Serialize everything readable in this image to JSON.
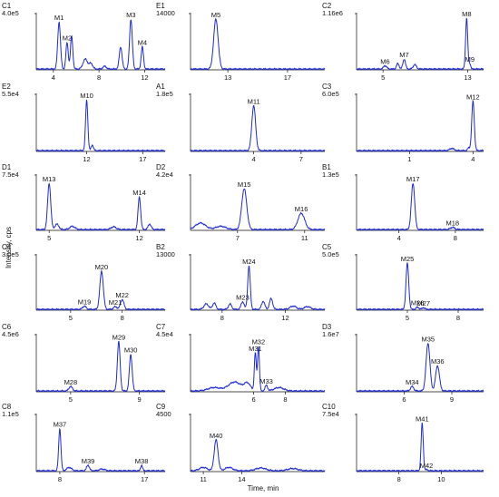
{
  "figure": {
    "xlabel": "Time, min",
    "ylabel": "Intensity, cps"
  },
  "chart_data": [
    {
      "type": "line",
      "panel": "C1",
      "ymax_label": "4.0e5",
      "xticks": [
        4,
        8,
        12
      ],
      "xlim": [
        2.5,
        13.8
      ],
      "peaks": [
        {
          "label": "M1",
          "x": 4.5,
          "h": 0.85,
          "w": 0.12
        },
        {
          "label": "M2",
          "x": 5.2,
          "h": 0.48,
          "w": 0.1
        },
        {
          "label": "M3",
          "x": 10.8,
          "h": 0.9,
          "w": 0.12
        },
        {
          "label": "M4",
          "x": 11.8,
          "h": 0.4,
          "w": 0.1
        }
      ],
      "minor": [
        {
          "x": 5.6,
          "h": 0.6,
          "w": 0.1
        },
        {
          "x": 6.8,
          "h": 0.18,
          "w": 0.2
        },
        {
          "x": 7.3,
          "h": 0.1,
          "w": 0.15
        },
        {
          "x": 8.5,
          "h": 0.05,
          "w": 0.15
        },
        {
          "x": 9.9,
          "h": 0.4,
          "w": 0.12
        }
      ]
    },
    {
      "type": "line",
      "panel": "E1",
      "ymax_label": "14000",
      "xticks": [
        13,
        17
      ],
      "xlim": [
        10.5,
        19.5
      ],
      "peaks": [
        {
          "label": "M5",
          "x": 12.2,
          "h": 0.9,
          "w": 0.15
        }
      ],
      "minor": []
    },
    {
      "type": "line",
      "panel": "C2",
      "ymax_label": "1.16e6",
      "xticks": [
        5,
        13
      ],
      "xlim": [
        2.5,
        14.5
      ],
      "peaks": [
        {
          "label": "M6",
          "x": 5.2,
          "h": 0.06,
          "w": 0.15
        },
        {
          "label": "M7",
          "x": 7.0,
          "h": 0.18,
          "w": 0.12
        },
        {
          "label": "M8",
          "x": 12.9,
          "h": 0.92,
          "w": 0.1
        },
        {
          "label": "M9",
          "x": 13.2,
          "h": 0.1,
          "w": 0.08
        }
      ],
      "minor": [
        {
          "x": 6.4,
          "h": 0.1,
          "w": 0.12
        },
        {
          "x": 8.0,
          "h": 0.08,
          "w": 0.15
        }
      ]
    },
    {
      "type": "line",
      "panel": "E2",
      "ymax_label": "5.5e4",
      "xticks": [
        12,
        17
      ],
      "xlim": [
        7.5,
        19
      ],
      "peaks": [
        {
          "label": "M10",
          "x": 12.0,
          "h": 0.9,
          "w": 0.1
        }
      ],
      "minor": [
        {
          "x": 12.5,
          "h": 0.1,
          "w": 0.1
        }
      ]
    },
    {
      "type": "line",
      "panel": "A1",
      "ymax_label": "1.8e5",
      "xticks": [
        4,
        7
      ],
      "xlim": [
        0,
        8.5
      ],
      "peaks": [
        {
          "label": "M11",
          "x": 4.0,
          "h": 0.8,
          "w": 0.12
        }
      ],
      "minor": []
    },
    {
      "type": "line",
      "panel": "C3",
      "ymax_label": "6.0e5",
      "xticks": [
        1,
        4
      ],
      "xlim": [
        -1.5,
        4.5
      ],
      "peaks": [
        {
          "label": "M12",
          "x": 4.0,
          "h": 0.88,
          "w": 0.06
        }
      ],
      "minor": [
        {
          "x": 3.0,
          "h": 0.04,
          "w": 0.1
        },
        {
          "x": 3.8,
          "h": 0.05,
          "w": 0.05
        }
      ]
    },
    {
      "type": "line",
      "panel": "D1",
      "ymax_label": "7.5e4",
      "xticks": [
        5,
        12
      ],
      "xlim": [
        4,
        14
      ],
      "peaks": [
        {
          "label": "M13",
          "x": 5.0,
          "h": 0.85,
          "w": 0.12
        },
        {
          "label": "M14",
          "x": 12.0,
          "h": 0.6,
          "w": 0.1
        }
      ],
      "minor": [
        {
          "x": 5.6,
          "h": 0.1,
          "w": 0.15
        },
        {
          "x": 6.8,
          "h": 0.06,
          "w": 0.2
        },
        {
          "x": 10.0,
          "h": 0.05,
          "w": 0.2
        },
        {
          "x": 12.8,
          "h": 0.1,
          "w": 0.12
        }
      ]
    },
    {
      "type": "line",
      "panel": "D2",
      "ymax_label": "4.2e4",
      "xticks": [
        7,
        11
      ],
      "xlim": [
        4.2,
        12.2
      ],
      "peaks": [
        {
          "label": "M15",
          "x": 7.4,
          "h": 0.75,
          "w": 0.15
        },
        {
          "label": "M16",
          "x": 10.8,
          "h": 0.3,
          "w": 0.2
        }
      ],
      "minor": [
        {
          "x": 4.8,
          "h": 0.12,
          "w": 0.3
        },
        {
          "x": 6.0,
          "h": 0.06,
          "w": 0.3
        }
      ]
    },
    {
      "type": "line",
      "panel": "B1",
      "ymax_label": "1.3e5",
      "xticks": [
        4,
        8
      ],
      "xlim": [
        1,
        10
      ],
      "peaks": [
        {
          "label": "M17",
          "x": 5.0,
          "h": 0.85,
          "w": 0.12
        },
        {
          "label": "M18",
          "x": 7.8,
          "h": 0.04,
          "w": 0.15
        }
      ],
      "minor": []
    },
    {
      "type": "line",
      "panel": "C4",
      "ymax_label": "3.0e5",
      "xticks": [
        5,
        8
      ],
      "xlim": [
        3,
        10.5
      ],
      "peaks": [
        {
          "label": "M19",
          "x": 5.8,
          "h": 0.06,
          "w": 0.1
        },
        {
          "label": "M20",
          "x": 6.8,
          "h": 0.7,
          "w": 0.1
        },
        {
          "label": "M21",
          "x": 7.6,
          "h": 0.05,
          "w": 0.1
        },
        {
          "label": "M22",
          "x": 8.0,
          "h": 0.18,
          "w": 0.1
        }
      ],
      "minor": []
    },
    {
      "type": "line",
      "panel": "B2",
      "ymax_label": "13000",
      "xticks": [
        8,
        12
      ],
      "xlim": [
        6,
        14.5
      ],
      "peaks": [
        {
          "label": "M23",
          "x": 9.3,
          "h": 0.14,
          "w": 0.1
        },
        {
          "label": "M24",
          "x": 9.7,
          "h": 0.8,
          "w": 0.08
        }
      ],
      "minor": [
        {
          "x": 7.0,
          "h": 0.1,
          "w": 0.15
        },
        {
          "x": 7.5,
          "h": 0.12,
          "w": 0.1
        },
        {
          "x": 8.5,
          "h": 0.1,
          "w": 0.1
        },
        {
          "x": 10.6,
          "h": 0.15,
          "w": 0.1
        },
        {
          "x": 11.1,
          "h": 0.2,
          "w": 0.1
        },
        {
          "x": 12.5,
          "h": 0.06,
          "w": 0.2
        },
        {
          "x": 13.4,
          "h": 0.05,
          "w": 0.2
        }
      ]
    },
    {
      "type": "line",
      "panel": "C5",
      "ymax_label": "5.0e5",
      "xticks": [
        5,
        8
      ],
      "xlim": [
        2,
        9.5
      ],
      "peaks": [
        {
          "label": "M25",
          "x": 5.0,
          "h": 0.85,
          "w": 0.08
        },
        {
          "label": "M26",
          "x": 5.6,
          "h": 0.04,
          "w": 0.08
        },
        {
          "label": "M27",
          "x": 5.95,
          "h": 0.03,
          "w": 0.08
        }
      ],
      "minor": []
    },
    {
      "type": "line",
      "panel": "C6",
      "ymax_label": "4.5e6",
      "xticks": [
        5,
        9
      ],
      "xlim": [
        3,
        10.5
      ],
      "peaks": [
        {
          "label": "M28",
          "x": 5.0,
          "h": 0.08,
          "w": 0.1
        },
        {
          "label": "M29",
          "x": 7.8,
          "h": 0.88,
          "w": 0.08
        },
        {
          "label": "M30",
          "x": 8.5,
          "h": 0.65,
          "w": 0.08
        }
      ],
      "minor": []
    },
    {
      "type": "line",
      "panel": "C7",
      "ymax_label": "4.5e4",
      "xticks": [
        6,
        8
      ],
      "xlim": [
        2,
        10.5
      ],
      "peaks": [
        {
          "label": "M31",
          "x": 6.1,
          "h": 0.68,
          "w": 0.06
        },
        {
          "label": "M32",
          "x": 6.3,
          "h": 0.8,
          "w": 0.06
        },
        {
          "label": "M33",
          "x": 6.8,
          "h": 0.1,
          "w": 0.08
        }
      ],
      "minor": [
        {
          "x": 3.5,
          "h": 0.06,
          "w": 0.4
        },
        {
          "x": 4.8,
          "h": 0.16,
          "w": 0.4
        },
        {
          "x": 5.6,
          "h": 0.13,
          "w": 0.2
        },
        {
          "x": 7.6,
          "h": 0.06,
          "w": 0.3
        }
      ]
    },
    {
      "type": "line",
      "panel": "D3",
      "ymax_label": "1.6e7",
      "xticks": [
        6,
        9
      ],
      "xlim": [
        3,
        11
      ],
      "peaks": [
        {
          "label": "M34",
          "x": 6.5,
          "h": 0.08,
          "w": 0.1
        },
        {
          "label": "M35",
          "x": 7.5,
          "h": 0.85,
          "w": 0.12
        },
        {
          "label": "M36",
          "x": 8.1,
          "h": 0.45,
          "w": 0.12
        }
      ],
      "minor": []
    },
    {
      "type": "line",
      "panel": "C8",
      "ymax_label": "1.1e5",
      "xticks": [
        8,
        17
      ],
      "xlim": [
        5.5,
        19.2
      ],
      "peaks": [
        {
          "label": "M37",
          "x": 8.0,
          "h": 0.75,
          "w": 0.12
        },
        {
          "label": "M39",
          "x": 11.0,
          "h": 0.1,
          "w": 0.15
        },
        {
          "label": "M38",
          "x": 16.7,
          "h": 0.1,
          "w": 0.1
        }
      ],
      "minor": [
        {
          "x": 9.0,
          "h": 0.06,
          "w": 0.25
        },
        {
          "x": 12.5,
          "h": 0.03,
          "w": 0.3
        }
      ]
    },
    {
      "type": "line",
      "panel": "C9",
      "ymax_label": "4500",
      "xticks": [
        11,
        14
      ],
      "xlim": [
        10,
        20.5
      ],
      "peaks": [
        {
          "label": "M40",
          "x": 12.0,
          "h": 0.55,
          "w": 0.15
        }
      ],
      "minor": [
        {
          "x": 11.0,
          "h": 0.06,
          "w": 0.3
        },
        {
          "x": 13.0,
          "h": 0.06,
          "w": 0.3
        },
        {
          "x": 15.5,
          "h": 0.05,
          "w": 0.4
        },
        {
          "x": 18.0,
          "h": 0.04,
          "w": 0.4
        }
      ]
    },
    {
      "type": "line",
      "panel": "C10",
      "ymax_label": "7.5e4",
      "xticks": [
        8,
        10
      ],
      "xlim": [
        6,
        12
      ],
      "peaks": [
        {
          "label": "M41",
          "x": 9.1,
          "h": 0.85,
          "w": 0.05
        },
        {
          "label": "M42",
          "x": 9.3,
          "h": 0.02,
          "w": 0.06
        }
      ],
      "minor": []
    }
  ]
}
